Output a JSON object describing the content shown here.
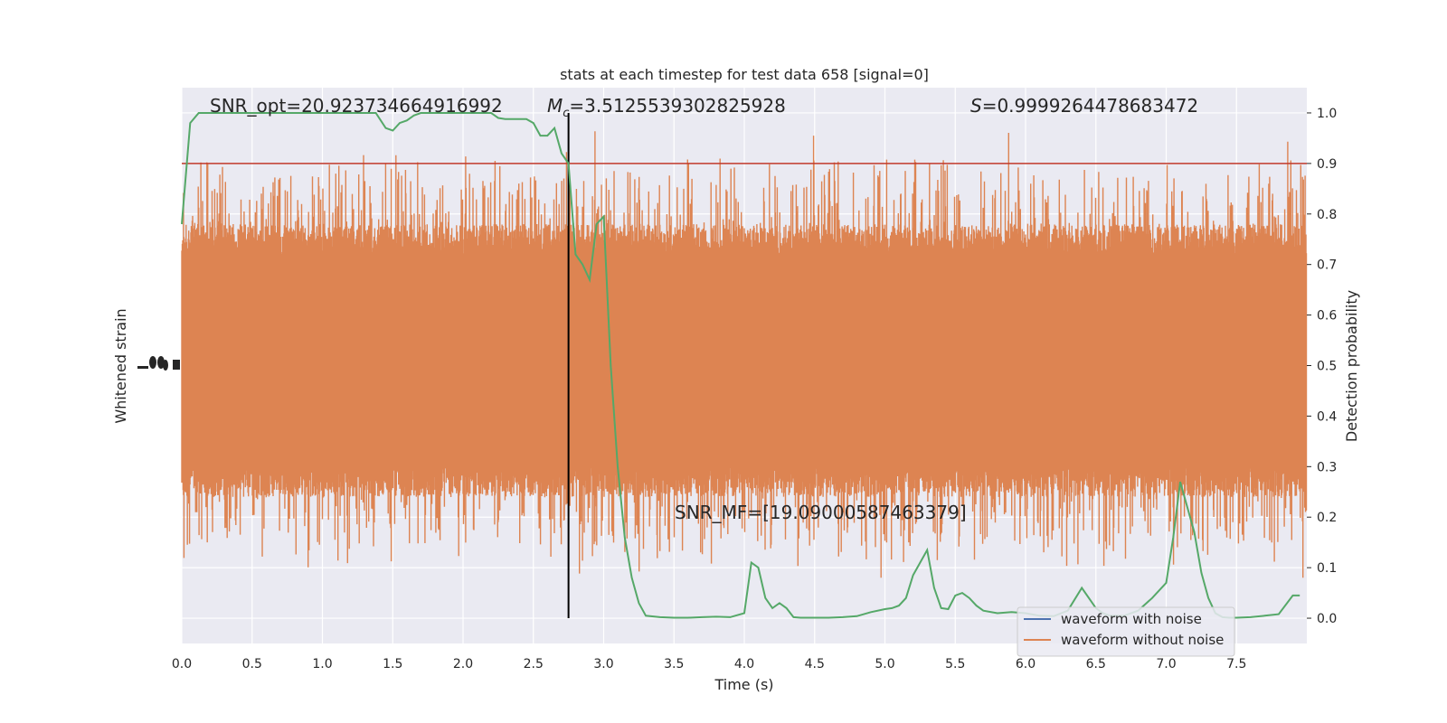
{
  "chart_data": {
    "type": "line",
    "title": "stats at each timestep for test data 658 [signal=0]",
    "xlabel": "Time (s)",
    "ylabel_left": "Whitened strain",
    "ylabel_right": "Detection probability",
    "xlim": [
      0.0,
      8.0
    ],
    "ylim_right": [
      -0.05,
      1.05
    ],
    "x_ticks": [
      "0.0",
      "0.5",
      "1.0",
      "1.5",
      "2.0",
      "2.5",
      "3.0",
      "3.5",
      "4.0",
      "4.5",
      "5.0",
      "5.5",
      "6.0",
      "6.5",
      "7.0",
      "7.5"
    ],
    "y_ticks_right": [
      "0.0",
      "0.1",
      "0.2",
      "0.3",
      "0.4",
      "0.5",
      "0.6",
      "0.7",
      "0.8",
      "0.9",
      "1.0"
    ],
    "grid": true,
    "legend_position": "bottom-right",
    "annotations": {
      "snr_opt": "SNR_opt=20.923734664916992",
      "mc_symbol": "M",
      "mc_subscript": "c",
      "mc_value": "=3.5125539302825928",
      "s_symbol": "S",
      "s_value": "=0.9999264478683472",
      "snr_mf": "SNR_MF=[19.09000587463379]"
    },
    "threshold": {
      "value": 0.9,
      "color": "#c0392b"
    },
    "marker_line": {
      "x": 2.75,
      "y_range": [
        0.0,
        1.0
      ],
      "color": "#000000"
    },
    "series": [
      {
        "name": "waveform with noise",
        "color": "#4c72b0",
        "note_values": "drawn as noise band behind orange trace",
        "amplitude_range": [
          0.08,
          0.98
        ]
      },
      {
        "name": "waveform without noise",
        "color": "#dd8452",
        "amplitude_range": [
          0.08,
          0.98
        ]
      },
      {
        "name": "",
        "color": "#55a868",
        "x": [
          0.0,
          0.06,
          0.12,
          0.2,
          0.3,
          0.4,
          0.5,
          0.6,
          0.7,
          0.8,
          0.9,
          1.0,
          1.1,
          1.2,
          1.3,
          1.38,
          1.45,
          1.5,
          1.55,
          1.6,
          1.65,
          1.7,
          1.75,
          1.8,
          1.9,
          2.0,
          2.1,
          2.15,
          2.2,
          2.25,
          2.3,
          2.4,
          2.45,
          2.5,
          2.55,
          2.6,
          2.65,
          2.7,
          2.75,
          2.8,
          2.85,
          2.9,
          2.95,
          3.0,
          3.05,
          3.1,
          3.15,
          3.2,
          3.25,
          3.3,
          3.4,
          3.5,
          3.6,
          3.7,
          3.8,
          3.9,
          4.0,
          4.05,
          4.1,
          4.15,
          4.2,
          4.25,
          4.3,
          4.35,
          4.4,
          4.5,
          4.6,
          4.7,
          4.8,
          4.9,
          5.0,
          5.05,
          5.1,
          5.15,
          5.2,
          5.3,
          5.35,
          5.4,
          5.45,
          5.5,
          5.55,
          5.6,
          5.65,
          5.7,
          5.8,
          5.9,
          6.0,
          6.1,
          6.2,
          6.3,
          6.4,
          6.5,
          6.55,
          6.6,
          6.7,
          6.8,
          6.9,
          7.0,
          7.05,
          7.1,
          7.15,
          7.2,
          7.25,
          7.3,
          7.35,
          7.4,
          7.45,
          7.5,
          7.6,
          7.7,
          7.8,
          7.9,
          7.95
        ],
        "values": [
          0.78,
          0.98,
          1.0,
          1.0,
          1.0,
          1.0,
          1.0,
          1.0,
          1.0,
          1.0,
          1.0,
          1.0,
          1.0,
          1.0,
          1.0,
          1.0,
          0.97,
          0.965,
          0.98,
          0.985,
          0.995,
          1.0,
          1.0,
          1.0,
          1.0,
          1.0,
          1.0,
          1.0,
          1.0,
          0.99,
          0.988,
          0.988,
          0.988,
          0.98,
          0.955,
          0.955,
          0.97,
          0.92,
          0.9,
          0.72,
          0.7,
          0.67,
          0.78,
          0.795,
          0.5,
          0.3,
          0.16,
          0.08,
          0.03,
          0.005,
          0.002,
          0.001,
          0.001,
          0.002,
          0.003,
          0.002,
          0.01,
          0.11,
          0.1,
          0.04,
          0.02,
          0.03,
          0.02,
          0.002,
          0.001,
          0.001,
          0.001,
          0.002,
          0.004,
          0.012,
          0.018,
          0.02,
          0.025,
          0.04,
          0.085,
          0.135,
          0.06,
          0.02,
          0.018,
          0.045,
          0.05,
          0.04,
          0.025,
          0.015,
          0.01,
          0.012,
          0.01,
          0.005,
          0.004,
          0.015,
          0.06,
          0.02,
          0.01,
          0.005,
          0.005,
          0.015,
          0.04,
          0.07,
          0.16,
          0.27,
          0.22,
          0.17,
          0.09,
          0.04,
          0.01,
          0.002,
          0.001,
          0.001,
          0.002,
          0.005,
          0.008,
          0.045,
          0.045
        ]
      }
    ]
  }
}
